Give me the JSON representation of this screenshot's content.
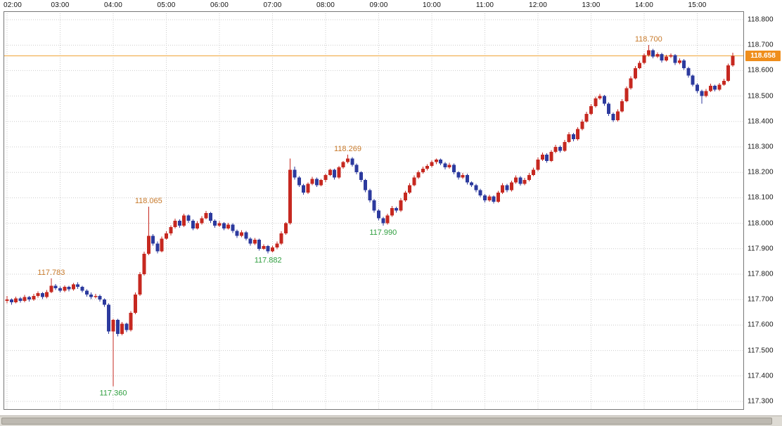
{
  "chart_data": {
    "type": "candlestick",
    "start_time": "02:00",
    "interval_minutes": 5,
    "time_labels": [
      "02:00",
      "03:00",
      "04:00",
      "05:00",
      "06:00",
      "07:00",
      "08:00",
      "09:00",
      "10:00",
      "11:00",
      "12:00",
      "13:00",
      "14:00",
      "15:00"
    ],
    "price_labels": [
      "118.800",
      "118.700",
      "118.600",
      "118.500",
      "118.400",
      "118.300",
      "118.200",
      "118.100",
      "118.000",
      "117.900",
      "117.800",
      "117.700",
      "117.600",
      "117.500",
      "117.400",
      "117.300"
    ],
    "ylim": [
      117.3,
      118.8
    ],
    "grid": true,
    "up_color": "#c62820",
    "down_color": "#2c3a9e",
    "grid_color": "#cccccc",
    "border_color": "#777777",
    "axis_text_color": "#111111",
    "current_price": {
      "value": 118.658,
      "label": "118.658",
      "line_color": "#efa030",
      "tag_bg": "#ef8e1c",
      "tag_text_color": "#ffffff"
    },
    "annotations": [
      {
        "text": "117.783",
        "candle_index": 10,
        "price": 117.783,
        "placement": "above",
        "color": "#c7792a"
      },
      {
        "text": "117.360",
        "candle_index": 24,
        "price": 117.36,
        "placement": "below",
        "color": "#2e9e3e"
      },
      {
        "text": "118.065",
        "candle_index": 32,
        "price": 118.065,
        "placement": "above",
        "color": "#c7792a"
      },
      {
        "text": "117.882",
        "candle_index": 59,
        "price": 117.882,
        "placement": "below",
        "color": "#2e9e3e"
      },
      {
        "text": "118.269",
        "candle_index": 77,
        "price": 118.269,
        "placement": "above",
        "color": "#c7792a"
      },
      {
        "text": "117.990",
        "candle_index": 85,
        "price": 117.99,
        "placement": "below",
        "color": "#2e9e3e"
      },
      {
        "text": "118.700",
        "candle_index": 145,
        "price": 118.7,
        "placement": "above",
        "color": "#c7792a"
      }
    ],
    "candles": [
      [
        117.695,
        117.715,
        117.685,
        117.7
      ],
      [
        117.7,
        117.705,
        117.68,
        117.69
      ],
      [
        117.69,
        117.712,
        117.685,
        117.705
      ],
      [
        117.705,
        117.71,
        117.688,
        117.695
      ],
      [
        117.695,
        117.718,
        117.69,
        117.71
      ],
      [
        117.71,
        117.715,
        117.692,
        117.7
      ],
      [
        117.7,
        117.722,
        117.695,
        117.715
      ],
      [
        117.715,
        117.732,
        117.708,
        117.725
      ],
      [
        117.725,
        117.73,
        117.702,
        117.71
      ],
      [
        117.71,
        117.738,
        117.705,
        117.73
      ],
      [
        117.73,
        117.783,
        117.725,
        117.755
      ],
      [
        117.755,
        117.762,
        117.738,
        117.745
      ],
      [
        117.745,
        117.752,
        117.728,
        117.735
      ],
      [
        117.735,
        117.756,
        117.73,
        117.75
      ],
      [
        117.75,
        117.755,
        117.732,
        117.74
      ],
      [
        117.74,
        117.765,
        117.735,
        117.76
      ],
      [
        117.76,
        117.768,
        117.742,
        117.75
      ],
      [
        117.75,
        117.755,
        117.728,
        117.735
      ],
      [
        117.735,
        117.74,
        117.712,
        117.72
      ],
      [
        117.72,
        117.728,
        117.702,
        117.71
      ],
      [
        117.71,
        117.722,
        117.705,
        117.715
      ],
      [
        117.715,
        117.72,
        117.692,
        117.7
      ],
      [
        117.7,
        117.705,
        117.672,
        117.68
      ],
      [
        117.68,
        117.685,
        117.565,
        117.575
      ],
      [
        117.575,
        117.625,
        117.36,
        117.62
      ],
      [
        117.62,
        117.625,
        117.555,
        117.565
      ],
      [
        117.565,
        117.612,
        117.56,
        117.605
      ],
      [
        117.605,
        117.61,
        117.572,
        117.58
      ],
      [
        117.58,
        117.655,
        117.575,
        117.648
      ],
      [
        117.648,
        117.728,
        117.643,
        117.72
      ],
      [
        117.72,
        117.808,
        117.715,
        117.8
      ],
      [
        117.8,
        117.888,
        117.795,
        117.88
      ],
      [
        117.88,
        118.065,
        117.875,
        117.95
      ],
      [
        117.95,
        117.958,
        117.912,
        117.92
      ],
      [
        117.92,
        117.928,
        117.882,
        117.89
      ],
      [
        117.89,
        117.948,
        117.885,
        117.94
      ],
      [
        117.94,
        117.968,
        117.935,
        117.96
      ],
      [
        117.96,
        117.992,
        117.952,
        117.985
      ],
      [
        117.985,
        118.018,
        117.98,
        118.01
      ],
      [
        118.01,
        118.015,
        117.982,
        117.99
      ],
      [
        117.99,
        118.038,
        117.985,
        118.03
      ],
      [
        118.03,
        118.035,
        118.002,
        118.01
      ],
      [
        118.01,
        118.015,
        117.972,
        117.98
      ],
      [
        117.98,
        118.008,
        117.975,
        118.0
      ],
      [
        118.0,
        118.028,
        117.995,
        118.02
      ],
      [
        118.02,
        118.048,
        118.015,
        118.04
      ],
      [
        118.04,
        118.045,
        118.002,
        118.01
      ],
      [
        118.01,
        118.015,
        117.982,
        117.99
      ],
      [
        117.99,
        118.008,
        117.985,
        118.0
      ],
      [
        118.0,
        118.005,
        117.972,
        117.98
      ],
      [
        117.98,
        118.002,
        117.975,
        117.995
      ],
      [
        117.995,
        118.0,
        117.962,
        117.97
      ],
      [
        117.97,
        117.975,
        117.942,
        117.95
      ],
      [
        117.95,
        117.972,
        117.945,
        117.965
      ],
      [
        117.965,
        117.97,
        117.932,
        117.94
      ],
      [
        117.94,
        117.945,
        117.912,
        117.92
      ],
      [
        117.92,
        117.942,
        117.915,
        117.935
      ],
      [
        117.935,
        117.94,
        117.892,
        117.9
      ],
      [
        117.9,
        117.918,
        117.895,
        117.91
      ],
      [
        117.91,
        117.915,
        117.882,
        117.89
      ],
      [
        117.89,
        117.912,
        117.885,
        117.905
      ],
      [
        117.905,
        117.928,
        117.898,
        117.92
      ],
      [
        117.92,
        117.968,
        117.915,
        117.96
      ],
      [
        117.96,
        118.005,
        117.955,
        118.0
      ],
      [
        118.0,
        118.255,
        117.995,
        118.21
      ],
      [
        118.21,
        118.222,
        118.172,
        118.18
      ],
      [
        118.18,
        118.185,
        118.142,
        118.15
      ],
      [
        118.15,
        118.155,
        118.112,
        118.12
      ],
      [
        118.12,
        118.16,
        118.115,
        118.155
      ],
      [
        118.155,
        118.182,
        118.15,
        118.175
      ],
      [
        118.175,
        118.18,
        118.142,
        118.15
      ],
      [
        118.15,
        118.175,
        118.145,
        118.17
      ],
      [
        118.17,
        118.195,
        118.162,
        118.19
      ],
      [
        118.19,
        118.215,
        118.185,
        118.21
      ],
      [
        118.21,
        118.215,
        118.172,
        118.18
      ],
      [
        118.18,
        118.225,
        118.175,
        118.22
      ],
      [
        118.22,
        118.245,
        118.215,
        118.24
      ],
      [
        118.24,
        118.269,
        118.235,
        118.255
      ],
      [
        118.255,
        118.26,
        118.222,
        118.23
      ],
      [
        118.23,
        118.235,
        118.192,
        118.2
      ],
      [
        118.2,
        118.205,
        118.162,
        118.17
      ],
      [
        118.17,
        118.175,
        118.122,
        118.13
      ],
      [
        118.13,
        118.135,
        118.082,
        118.09
      ],
      [
        118.09,
        118.095,
        118.042,
        118.05
      ],
      [
        118.05,
        118.055,
        118.012,
        118.02
      ],
      [
        118.02,
        118.025,
        117.99,
        118.0
      ],
      [
        118.0,
        118.038,
        117.995,
        118.03
      ],
      [
        118.03,
        118.068,
        118.025,
        118.06
      ],
      [
        118.06,
        118.065,
        118.042,
        118.05
      ],
      [
        118.05,
        118.098,
        118.045,
        118.09
      ],
      [
        118.09,
        118.128,
        118.085,
        118.12
      ],
      [
        118.12,
        118.158,
        118.115,
        118.15
      ],
      [
        118.15,
        118.188,
        118.145,
        118.18
      ],
      [
        118.18,
        118.208,
        118.175,
        118.2
      ],
      [
        118.2,
        118.222,
        118.195,
        118.215
      ],
      [
        118.215,
        118.232,
        118.208,
        118.225
      ],
      [
        118.225,
        118.248,
        118.22,
        118.24
      ],
      [
        118.24,
        118.255,
        118.232,
        118.25
      ],
      [
        118.25,
        118.255,
        118.228,
        118.235
      ],
      [
        118.235,
        118.24,
        118.212,
        118.22
      ],
      [
        118.22,
        118.238,
        118.215,
        118.23
      ],
      [
        118.23,
        118.235,
        118.192,
        118.2
      ],
      [
        118.2,
        118.205,
        118.172,
        118.18
      ],
      [
        118.18,
        118.198,
        118.175,
        118.19
      ],
      [
        118.19,
        118.195,
        118.152,
        118.16
      ],
      [
        118.16,
        118.165,
        118.142,
        118.15
      ],
      [
        118.15,
        118.155,
        118.122,
        118.13
      ],
      [
        118.13,
        118.135,
        118.102,
        118.11
      ],
      [
        118.11,
        118.115,
        118.082,
        118.09
      ],
      [
        118.09,
        118.112,
        118.085,
        118.105
      ],
      [
        118.105,
        118.11,
        118.078,
        118.085
      ],
      [
        118.085,
        118.128,
        118.08,
        118.12
      ],
      [
        118.12,
        118.158,
        118.115,
        118.15
      ],
      [
        118.15,
        118.155,
        118.122,
        118.13
      ],
      [
        118.13,
        118.168,
        118.125,
        118.16
      ],
      [
        118.16,
        118.188,
        118.155,
        118.18
      ],
      [
        118.18,
        118.185,
        118.148,
        118.155
      ],
      [
        118.155,
        118.178,
        118.15,
        118.17
      ],
      [
        118.17,
        118.198,
        118.165,
        118.19
      ],
      [
        118.19,
        118.218,
        118.185,
        118.21
      ],
      [
        118.21,
        118.258,
        118.205,
        118.25
      ],
      [
        118.25,
        118.278,
        118.245,
        118.27
      ],
      [
        118.27,
        118.275,
        118.238,
        118.245
      ],
      [
        118.245,
        118.288,
        118.24,
        118.28
      ],
      [
        118.28,
        118.308,
        118.275,
        118.3
      ],
      [
        118.3,
        118.305,
        118.278,
        118.285
      ],
      [
        118.285,
        118.328,
        118.28,
        118.32
      ],
      [
        118.32,
        118.358,
        118.315,
        118.35
      ],
      [
        118.35,
        118.355,
        118.322,
        118.33
      ],
      [
        118.33,
        118.378,
        118.325,
        118.37
      ],
      [
        118.37,
        118.408,
        118.365,
        118.4
      ],
      [
        118.4,
        118.438,
        118.395,
        118.43
      ],
      [
        118.43,
        118.468,
        118.425,
        118.46
      ],
      [
        118.46,
        118.498,
        118.455,
        118.49
      ],
      [
        118.49,
        118.508,
        118.485,
        118.5
      ],
      [
        118.5,
        118.505,
        118.462,
        118.47
      ],
      [
        118.47,
        118.475,
        118.422,
        118.43
      ],
      [
        118.43,
        118.435,
        118.398,
        118.405
      ],
      [
        118.405,
        118.448,
        118.4,
        118.44
      ],
      [
        118.44,
        118.488,
        118.435,
        118.48
      ],
      [
        118.48,
        118.538,
        118.475,
        118.53
      ],
      [
        118.53,
        118.578,
        118.525,
        118.57
      ],
      [
        118.57,
        118.618,
        118.565,
        118.61
      ],
      [
        118.61,
        118.638,
        118.605,
        118.63
      ],
      [
        118.63,
        118.668,
        118.625,
        118.66
      ],
      [
        118.66,
        118.7,
        118.655,
        118.68
      ],
      [
        118.68,
        118.685,
        118.648,
        118.655
      ],
      [
        118.655,
        118.672,
        118.65,
        118.665
      ],
      [
        118.665,
        118.67,
        118.632,
        118.64
      ],
      [
        118.64,
        118.662,
        118.635,
        118.655
      ],
      [
        118.655,
        118.668,
        118.65,
        118.66
      ],
      [
        118.66,
        118.665,
        118.622,
        118.63
      ],
      [
        118.63,
        118.648,
        118.625,
        118.64
      ],
      [
        118.64,
        118.645,
        118.602,
        118.61
      ],
      [
        118.61,
        118.615,
        118.572,
        118.58
      ],
      [
        118.58,
        118.585,
        118.538,
        118.545
      ],
      [
        118.545,
        118.55,
        118.512,
        118.52
      ],
      [
        118.52,
        118.525,
        118.47,
        118.5
      ],
      [
        118.5,
        118.528,
        118.495,
        118.52
      ],
      [
        118.52,
        118.548,
        118.515,
        118.54
      ],
      [
        118.54,
        118.545,
        118.518,
        118.525
      ],
      [
        118.525,
        118.552,
        118.52,
        118.545
      ],
      [
        118.545,
        118.568,
        118.54,
        118.56
      ],
      [
        118.56,
        118.628,
        118.555,
        118.62
      ],
      [
        118.62,
        118.67,
        118.615,
        118.658
      ]
    ]
  }
}
